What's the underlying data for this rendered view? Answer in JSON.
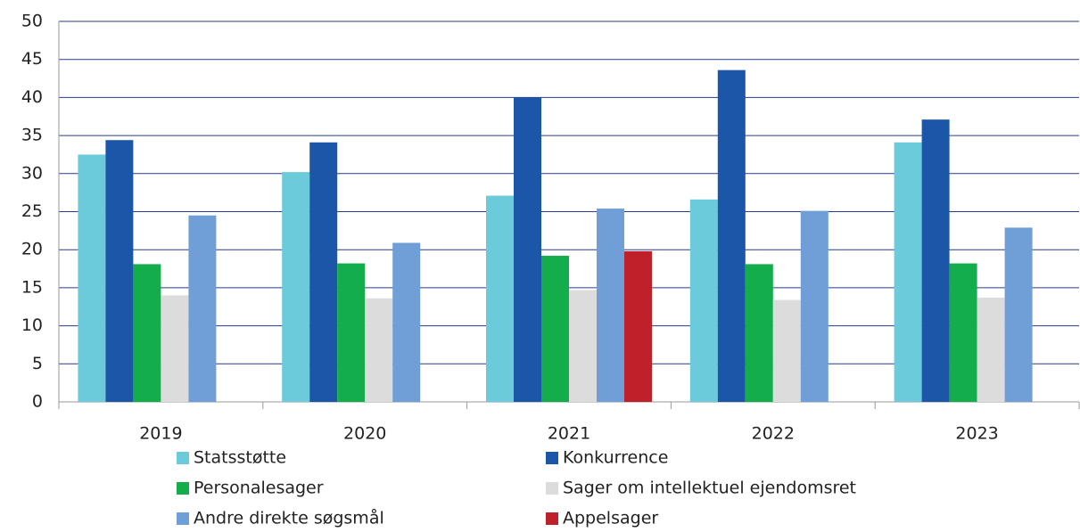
{
  "chart_data": {
    "type": "bar",
    "categories": [
      "2019",
      "2020",
      "2021",
      "2022",
      "2023"
    ],
    "series": [
      {
        "name": "Statsstøtte",
        "color": "#6ccbdb",
        "values": [
          32.5,
          30.2,
          27.1,
          26.6,
          34.1
        ]
      },
      {
        "name": "Konkurrence",
        "color": "#1b56a8",
        "values": [
          34.4,
          34.1,
          40,
          43.6,
          37.1
        ]
      },
      {
        "name": "Personalesager",
        "color": "#14ad4b",
        "values": [
          18.1,
          18.2,
          19.2,
          18.1,
          18.2
        ]
      },
      {
        "name": "Sager om intellektuel ejendomsret",
        "color": "#dcdcdc",
        "values": [
          14,
          13.6,
          14.7,
          13.4,
          13.7
        ]
      },
      {
        "name": "Andre direkte søgsmål",
        "color": "#6f9fd6",
        "values": [
          24.5,
          20.9,
          25.4,
          25.1,
          22.9
        ]
      },
      {
        "name": "Appelsager",
        "color": "#c0202a",
        "values": [
          null,
          null,
          19.8,
          null,
          null
        ]
      }
    ],
    "ylim": [
      0,
      50
    ],
    "yticks": [
      0,
      5,
      10,
      15,
      20,
      25,
      30,
      35,
      40,
      45,
      50
    ],
    "grid": true
  }
}
